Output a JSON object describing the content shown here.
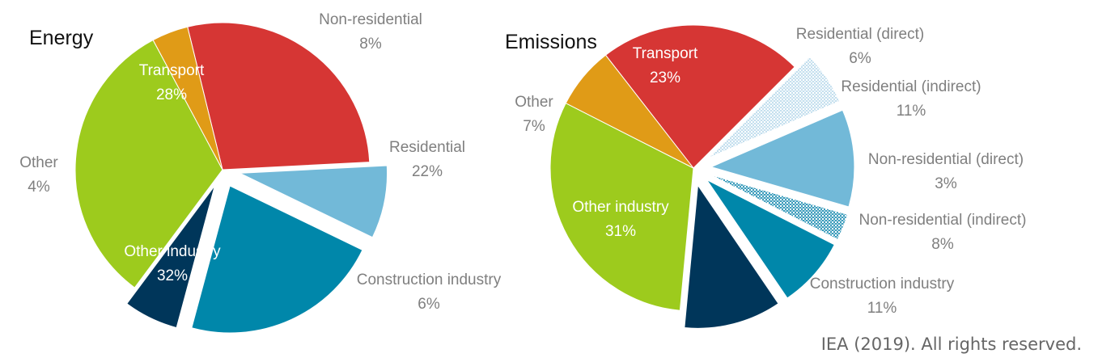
{
  "colors": {
    "transport": "#d63634",
    "non_residential": "#72b9d8",
    "residential": "#0087aa",
    "construction": "#00365a",
    "other_industry": "#9dcb1d",
    "other": "#e09b17",
    "residential_direct": "#9ac9e2",
    "non_residential_direct": "#2a93b6"
  },
  "credit": "IEA (2019). All rights reserved.",
  "chart_data": [
    {
      "type": "pie",
      "title": "Energy",
      "slices": [
        {
          "label": "Transport",
          "value": 28,
          "pct": "28%",
          "color": "#d63634",
          "inside": true
        },
        {
          "label": "Non-residential",
          "value": 8,
          "pct": "8%",
          "color": "#72b9d8",
          "inside": false
        },
        {
          "label": "Residential",
          "value": 22,
          "pct": "22%",
          "color": "#0087aa",
          "inside": false
        },
        {
          "label": "Construction industry",
          "value": 6,
          "pct": "6%",
          "color": "#00365a",
          "inside": false
        },
        {
          "label": "Other industry",
          "value": 32,
          "pct": "32%",
          "color": "#9dcb1d",
          "inside": true
        },
        {
          "label": "Other",
          "value": 4,
          "pct": "4%",
          "color": "#e09b17",
          "inside": false
        }
      ]
    },
    {
      "type": "pie",
      "title": "Emissions",
      "slices": [
        {
          "label": "Transport",
          "value": 23,
          "pct": "23%",
          "color": "#d63634",
          "inside": true
        },
        {
          "label": "Residential (direct)",
          "value": 6,
          "pct": "6%",
          "color": "#9ac9e2",
          "inside": false,
          "pattern": true
        },
        {
          "label": "Residential (indirect)",
          "value": 11,
          "pct": "11%",
          "color": "#72b9d8",
          "inside": false
        },
        {
          "label": "Non-residential (direct)",
          "value": 3,
          "pct": "3%",
          "color": "#2a93b6",
          "inside": false,
          "pattern": true
        },
        {
          "label": "Non-residential (indirect)",
          "value": 8,
          "pct": "8%",
          "color": "#0087aa",
          "inside": false
        },
        {
          "label": "Construction industry",
          "value": 11,
          "pct": "11%",
          "color": "#00365a",
          "inside": false
        },
        {
          "label": "Other industry",
          "value": 31,
          "pct": "31%",
          "color": "#9dcb1d",
          "inside": true
        },
        {
          "label": "Other",
          "value": 7,
          "pct": "7%",
          "color": "#e09b17",
          "inside": false
        }
      ]
    }
  ]
}
